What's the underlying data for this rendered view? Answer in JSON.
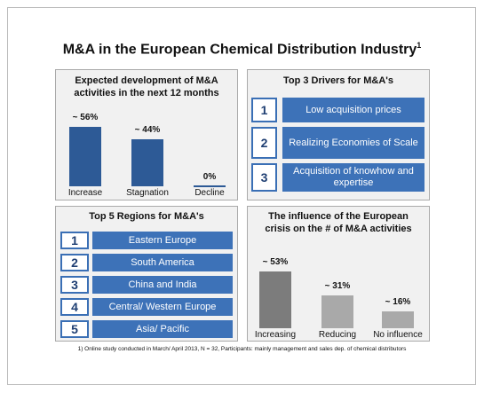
{
  "title": "M&A in the European Chemical Distribution Industry",
  "title_sup": "1",
  "footnote": "1) Online study conducted in March/ April 2013, N = 32, Participants: mainly management and sales dep. of chemical distributors",
  "chart_data": [
    {
      "type": "bar",
      "title": "Expected development of M&A activities in the next 12 months",
      "categories": [
        "Increase",
        "Stagnation",
        "Decline"
      ],
      "values": [
        56,
        44,
        0
      ],
      "value_labels": [
        "~ 56%",
        "~ 44%",
        "0%"
      ],
      "colors": [
        "#2d5a96",
        "#2d5a96",
        "#2d5a96"
      ]
    },
    {
      "type": "bar",
      "title": "The influence of the European crisis on the # of M&A activities",
      "categories": [
        "Increasing",
        "Reducing",
        "No influence"
      ],
      "values": [
        53,
        31,
        16
      ],
      "value_labels": [
        "~ 53%",
        "~ 31%",
        "~ 16%"
      ],
      "colors": [
        "#7c7c7c",
        "#a9a9a9",
        "#a9a9a9"
      ]
    }
  ],
  "drivers": {
    "title": "Top 3 Drivers for M&A's",
    "items": [
      {
        "rank": "1",
        "label": "Low acquisition prices"
      },
      {
        "rank": "2",
        "label": "Realizing Economies of Scale"
      },
      {
        "rank": "3",
        "label": "Acquisition of knowhow and expertise"
      }
    ]
  },
  "regions": {
    "title": "Top 5 Regions for M&A's",
    "items": [
      {
        "rank": "1",
        "label": "Eastern Europe"
      },
      {
        "rank": "2",
        "label": "South America"
      },
      {
        "rank": "3",
        "label": "China and India"
      },
      {
        "rank": "4",
        "label": "Central/ Western Europe"
      },
      {
        "rank": "5",
        "label": "Asia/ Pacific"
      }
    ]
  }
}
